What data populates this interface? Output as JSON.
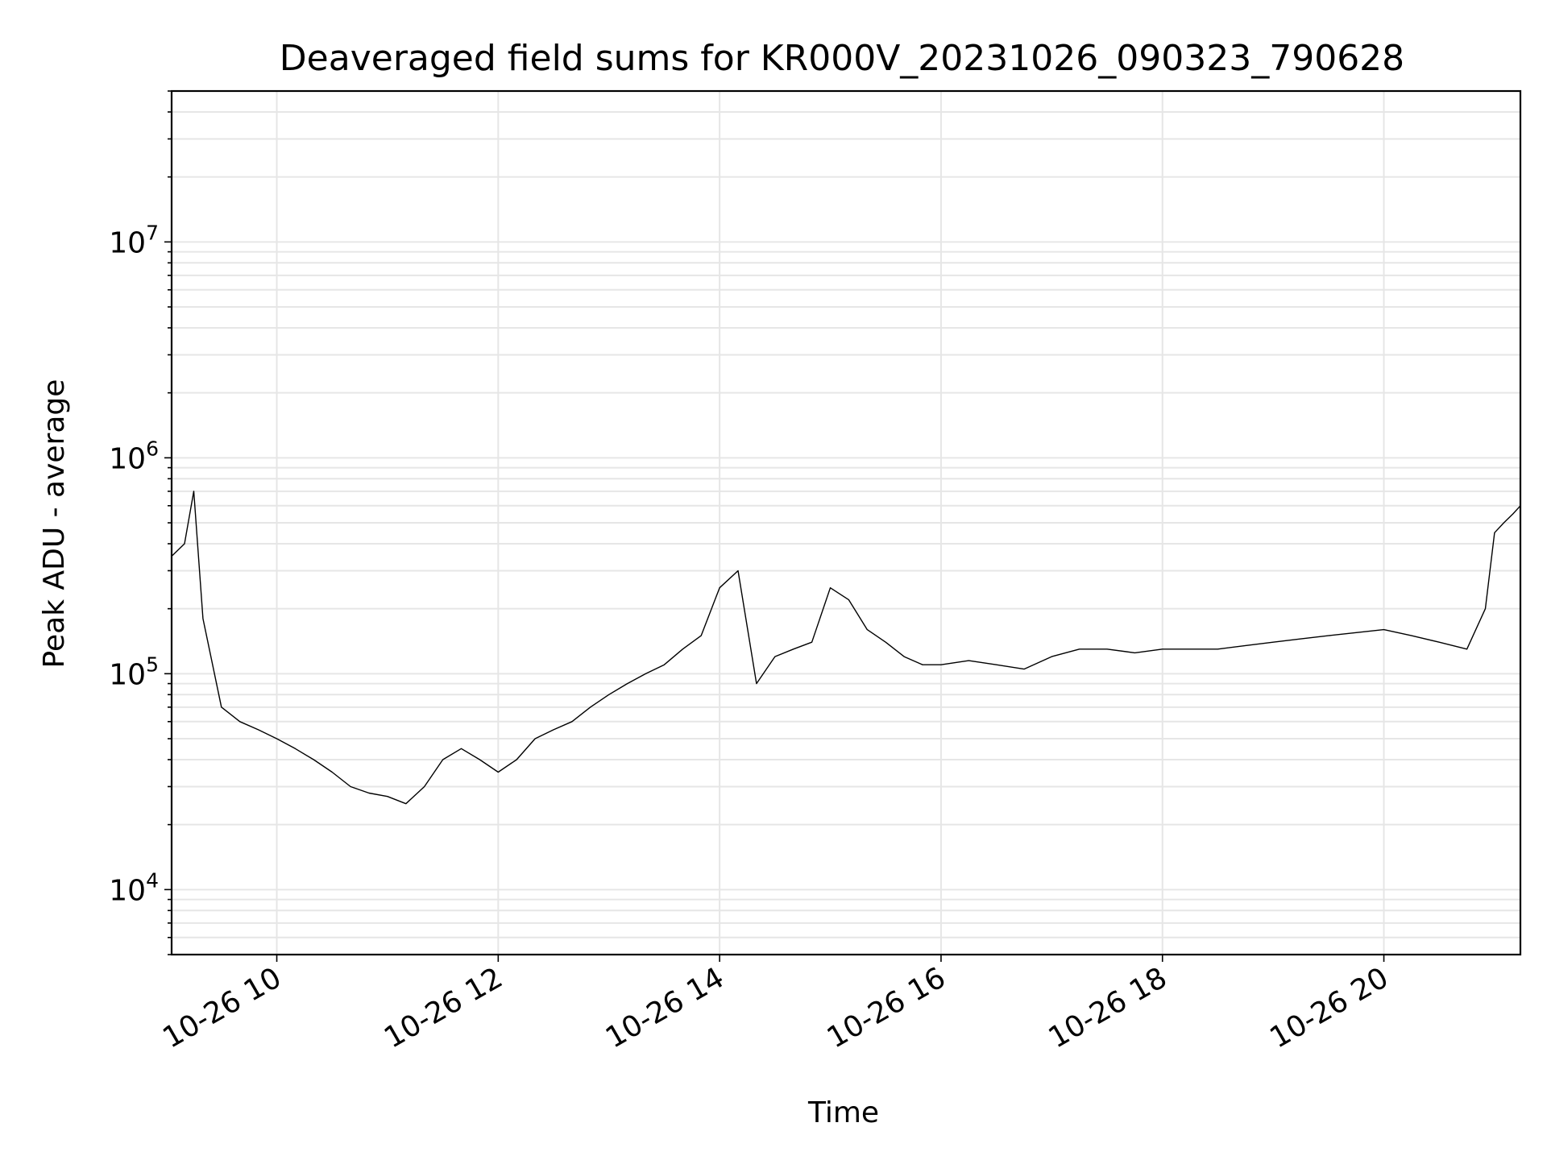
{
  "chart_data": {
    "type": "line",
    "title": "Deaveraged field sums for KR000V_20231026_090323_790628",
    "xlabel": "Time",
    "ylabel": "Peak ADU - average",
    "y_scale": "log",
    "ylim": [
      5000,
      50000000
    ],
    "xlim": [
      "10-26 09:03",
      "10-26 21:14"
    ],
    "grid": true,
    "line_color": "#000000",
    "grid_color": "#e6e6e6",
    "x_ticks": [
      {
        "label": "10-26 10",
        "value": "10-26 10:00"
      },
      {
        "label": "10-26 12",
        "value": "10-26 12:00"
      },
      {
        "label": "10-26 14",
        "value": "10-26 14:00"
      },
      {
        "label": "10-26 16",
        "value": "10-26 16:00"
      },
      {
        "label": "10-26 18",
        "value": "10-26 18:00"
      },
      {
        "label": "10-26 20",
        "value": "10-26 20:00"
      }
    ],
    "y_ticks": [
      {
        "base": "10",
        "exp": "4",
        "value": 10000
      },
      {
        "base": "10",
        "exp": "5",
        "value": 100000
      },
      {
        "base": "10",
        "exp": "6",
        "value": 1000000
      },
      {
        "base": "10",
        "exp": "7",
        "value": 10000000
      }
    ],
    "series": [
      {
        "x": [
          "10-26 09:03",
          "10-26 09:10",
          "10-26 09:15",
          "10-26 09:20",
          "10-26 09:30",
          "10-26 09:40",
          "10-26 09:50",
          "10-26 10:00",
          "10-26 10:10",
          "10-26 10:20",
          "10-26 10:30",
          "10-26 10:40",
          "10-26 10:50",
          "10-26 11:00",
          "10-26 11:10",
          "10-26 11:20",
          "10-26 11:30",
          "10-26 11:40",
          "10-26 11:50",
          "10-26 12:00",
          "10-26 12:10",
          "10-26 12:20",
          "10-26 12:30",
          "10-26 12:40",
          "10-26 12:50",
          "10-26 13:00",
          "10-26 13:10",
          "10-26 13:20",
          "10-26 13:30",
          "10-26 13:40",
          "10-26 13:50",
          "10-26 14:00",
          "10-26 14:10",
          "10-26 14:20",
          "10-26 14:30",
          "10-26 14:40",
          "10-26 14:50",
          "10-26 15:00",
          "10-26 15:10",
          "10-26 15:20",
          "10-26 15:30",
          "10-26 15:40",
          "10-26 15:50",
          "10-26 16:00",
          "10-26 16:15",
          "10-26 16:30",
          "10-26 16:45",
          "10-26 17:00",
          "10-26 17:15",
          "10-26 17:30",
          "10-26 17:45",
          "10-26 18:00",
          "10-26 18:15",
          "10-26 18:30",
          "10-26 18:45",
          "10-26 19:00",
          "10-26 19:15",
          "10-26 19:30",
          "10-26 19:45",
          "10-26 20:00",
          "10-26 20:15",
          "10-26 20:30",
          "10-26 20:45",
          "10-26 20:55",
          "10-26 21:00",
          "10-26 21:05",
          "10-26 21:10",
          "10-26 21:14"
        ],
        "y": [
          350000,
          400000,
          700000,
          180000,
          70000,
          60000,
          55000,
          50000,
          45000,
          40000,
          35000,
          30000,
          28000,
          27000,
          25000,
          30000,
          40000,
          45000,
          40000,
          35000,
          40000,
          50000,
          55000,
          60000,
          70000,
          80000,
          90000,
          100000,
          110000,
          130000,
          150000,
          250000,
          300000,
          90000,
          120000,
          130000,
          140000,
          250000,
          220000,
          160000,
          140000,
          120000,
          110000,
          110000,
          115000,
          110000,
          105000,
          120000,
          130000,
          130000,
          125000,
          130000,
          130000,
          130000,
          135000,
          140000,
          145000,
          150000,
          155000,
          160000,
          150000,
          140000,
          130000,
          200000,
          450000,
          500000,
          550000,
          600000
        ]
      }
    ]
  }
}
